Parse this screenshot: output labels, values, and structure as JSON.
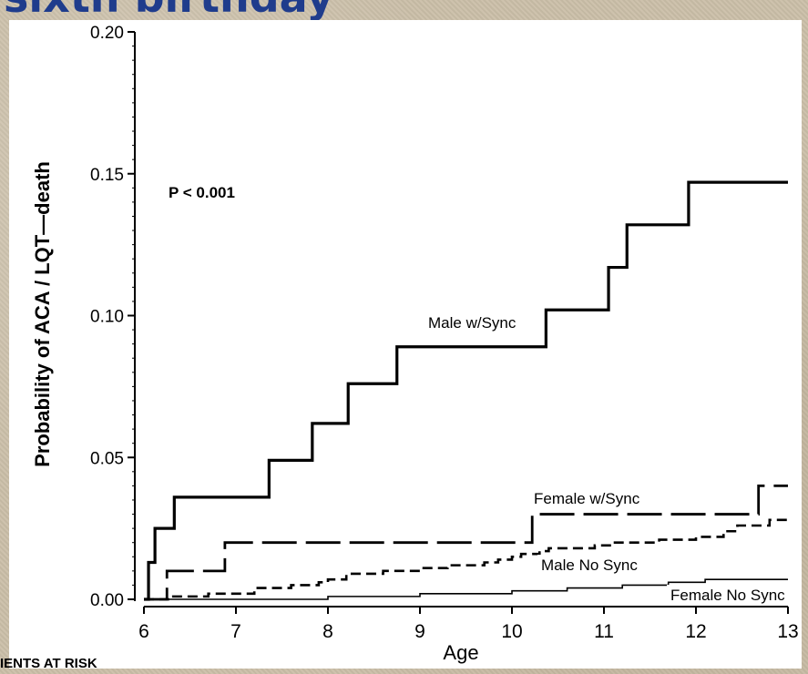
{
  "slide": {
    "title": "sixth birthday"
  },
  "footer": {
    "risk_label": "IENTS AT RISK"
  },
  "colors": {
    "title": "#1f3c8c",
    "background": "#cbbfa9",
    "plot_bg": "#ffffff",
    "ink": "#000000"
  },
  "chart_data": {
    "type": "line",
    "step": true,
    "xlabel": "Age",
    "ylabel": "Probability of ACA / LQT—death",
    "xlim": [
      6,
      13
    ],
    "ylim": [
      0,
      0.2
    ],
    "xticks": [
      6,
      7,
      8,
      9,
      10,
      11,
      12,
      13
    ],
    "xtick_labels": [
      "6",
      "7",
      "8",
      "9",
      "10",
      "11",
      "12",
      "13"
    ],
    "yticks": [
      0,
      0.05,
      0.1,
      0.15,
      0.2
    ],
    "ytick_labels": [
      "0.00",
      "0.05",
      "0.10",
      "0.15",
      "0.20"
    ],
    "grid": false,
    "annotation": "P < 0.001",
    "series": [
      {
        "name": "Male w/Sync",
        "style": "solid-thick",
        "x": [
          6.0,
          6.05,
          6.12,
          6.33,
          7.36,
          7.83,
          8.22,
          8.75,
          10.37,
          11.05,
          11.25,
          11.92,
          13.0
        ],
        "y": [
          0.0,
          0.013,
          0.025,
          0.036,
          0.049,
          0.062,
          0.076,
          0.089,
          0.102,
          0.117,
          0.132,
          0.147,
          0.147
        ]
      },
      {
        "name": "Female w/Sync",
        "style": "long-dash",
        "x": [
          6.0,
          6.25,
          6.88,
          10.22,
          12.68,
          13.0
        ],
        "y": [
          0.0,
          0.01,
          0.02,
          0.03,
          0.04,
          0.04
        ]
      },
      {
        "name": "Male No Sync",
        "style": "short-dash",
        "x": [
          6.0,
          6.3,
          6.7,
          7.2,
          7.6,
          7.9,
          8.0,
          8.2,
          8.6,
          9.0,
          9.3,
          9.7,
          9.85,
          10.0,
          10.1,
          10.3,
          10.4,
          10.9,
          11.1,
          11.6,
          12.0,
          12.3,
          12.45,
          12.8,
          13.0
        ],
        "y": [
          0.0,
          0.001,
          0.002,
          0.004,
          0.005,
          0.006,
          0.007,
          0.009,
          0.01,
          0.011,
          0.012,
          0.013,
          0.014,
          0.015,
          0.016,
          0.017,
          0.018,
          0.019,
          0.02,
          0.021,
          0.022,
          0.024,
          0.026,
          0.028,
          0.029
        ]
      },
      {
        "name": "Female No Sync",
        "style": "solid-thin",
        "x": [
          6.0,
          8.0,
          9.0,
          10.0,
          10.6,
          11.2,
          11.7,
          12.1,
          12.5,
          13.0
        ],
        "y": [
          0.0,
          0.001,
          0.002,
          0.003,
          0.004,
          0.005,
          0.006,
          0.007,
          0.007,
          0.007
        ]
      }
    ]
  }
}
